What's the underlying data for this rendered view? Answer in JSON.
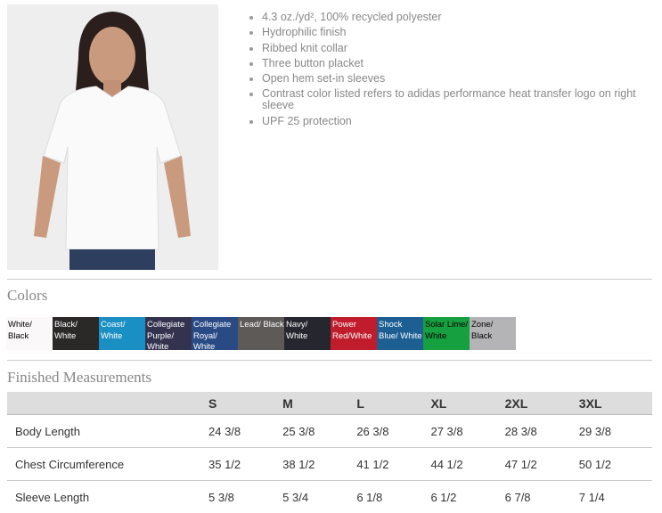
{
  "product_image": {
    "alt": "Woman wearing white polo shirt"
  },
  "features": [
    "4.3 oz./yd², 100% recycled polyester",
    "Hydrophilic finish",
    "Ribbed knit collar",
    "Three button placket",
    "Open hem set-in sleeves",
    "Contrast color listed refers to adidas performance heat transfer logo on right sleeve",
    "UPF 25 protection"
  ],
  "colors": {
    "title": "Colors",
    "swatches": [
      {
        "label": "White/ Black",
        "color": "#faf8f8",
        "text": "#000"
      },
      {
        "label": "Black/ White",
        "color": "#2b2828",
        "text": "#fff"
      },
      {
        "label": "Coast/ White",
        "color": "#1a8fc4",
        "text": "#fff"
      },
      {
        "label": "Collegiate Purple/ White",
        "color": "#33334f",
        "text": "#fff"
      },
      {
        "label": "Collegiate Royal/ White",
        "color": "#2a4a86",
        "text": "#fff"
      },
      {
        "label": "Lead/ Black",
        "color": "#5e5a58",
        "text": "#fff"
      },
      {
        "label": "Navy/ White",
        "color": "#26262e",
        "text": "#fff"
      },
      {
        "label": "Power Red/White",
        "color": "#c01c2c",
        "text": "#fff"
      },
      {
        "label": "Shock Blue/ White",
        "color": "#1d5f92",
        "text": "#fff"
      },
      {
        "label": "Solar Lime/ White",
        "color": "#16a040",
        "text": "#000"
      },
      {
        "label": "Zone/ Black",
        "color": "#b4b4b6",
        "text": "#000"
      }
    ]
  },
  "measurements": {
    "title": "Finished Measurements",
    "sizes": [
      "S",
      "M",
      "L",
      "XL",
      "2XL",
      "3XL"
    ],
    "rows": [
      {
        "label": "Body Length",
        "values": [
          "24 3/8",
          "25 3/8",
          "26 3/8",
          "27 3/8",
          "28 3/8",
          "29 3/8"
        ]
      },
      {
        "label": "Chest Circumference",
        "values": [
          "35 1/2",
          "38 1/2",
          "41 1/2",
          "44 1/2",
          "47 1/2",
          "50 1/2"
        ]
      },
      {
        "label": "Sleeve Length",
        "values": [
          "5 3/8",
          "5 3/4",
          "6 1/8",
          "6 1/2",
          "6 7/8",
          "7 1/4"
        ]
      }
    ]
  }
}
